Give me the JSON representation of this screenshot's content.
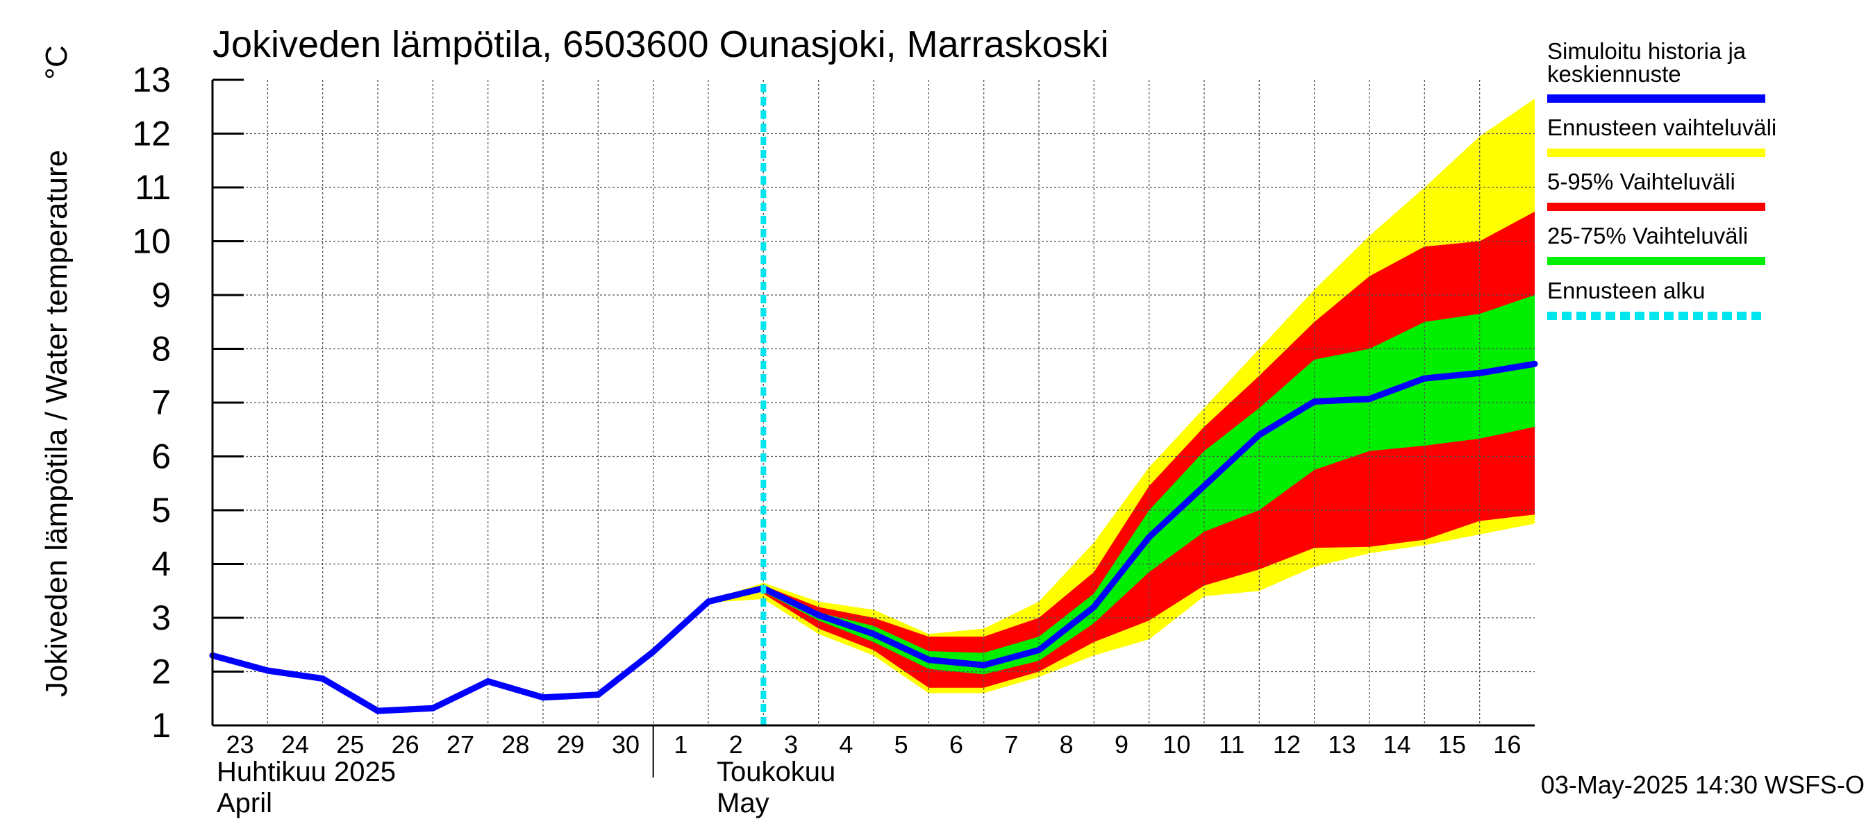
{
  "chart_data": {
    "type": "area",
    "title": "Jokiveden lämpötila, 6503600 Ounasjoki, Marraskoski",
    "ylabel": "Jokiveden lämpötila / Water temperature",
    "yunit": "°C",
    "ylim": [
      1,
      13
    ],
    "yticks": [
      1,
      2,
      3,
      4,
      5,
      6,
      7,
      8,
      9,
      10,
      11,
      12,
      13
    ],
    "xlim": [
      "2025-04-23",
      "2025-05-17"
    ],
    "x_tick_labels": [
      "23",
      "24",
      "25",
      "26",
      "27",
      "28",
      "29",
      "30",
      "1",
      "2",
      "3",
      "4",
      "5",
      "6",
      "7",
      "8",
      "9",
      "10",
      "11",
      "12",
      "13",
      "14",
      "15",
      "16"
    ],
    "month_labels": [
      {
        "fi": "Huhtikuu  2025",
        "en": "April"
      },
      {
        "fi": "Toukokuu",
        "en": "May"
      }
    ],
    "grid": true,
    "legend_placement": "right",
    "forecast_start": "2025-05-03",
    "footer": "03-May-2025 14:30 WSFS-O",
    "colors": {
      "history": "#0000ff",
      "full_range": "#ffff00",
      "p5_95": "#ff0000",
      "p25_75": "#00ee00",
      "forecast_start": "#00e5ee"
    },
    "series": [
      {
        "name": "Simuloitu historia ja keskiennuste",
        "x": [
          "2025-04-23",
          "2025-04-24",
          "2025-04-25",
          "2025-04-26",
          "2025-04-27",
          "2025-04-28",
          "2025-04-29",
          "2025-04-30",
          "2025-05-01",
          "2025-05-02",
          "2025-05-03",
          "2025-05-04",
          "2025-05-05",
          "2025-05-06",
          "2025-05-07",
          "2025-05-08",
          "2025-05-09",
          "2025-05-10",
          "2025-05-11",
          "2025-05-12",
          "2025-05-13",
          "2025-05-14",
          "2025-05-15",
          "2025-05-16",
          "2025-05-17"
        ],
        "y": [
          2.3,
          2.02,
          1.87,
          1.27,
          1.32,
          1.82,
          1.52,
          1.57,
          2.37,
          3.3,
          3.55,
          3.05,
          2.7,
          2.22,
          2.12,
          2.4,
          3.2,
          4.5,
          5.45,
          6.4,
          7.02,
          7.07,
          7.45,
          7.55,
          7.72
        ]
      }
    ],
    "bands": [
      {
        "name": "Ennusteen vaihteluväli",
        "x": [
          "2025-05-02",
          "2025-05-03",
          "2025-05-04",
          "2025-05-05",
          "2025-05-06",
          "2025-05-07",
          "2025-05-08",
          "2025-05-09",
          "2025-05-10",
          "2025-05-11",
          "2025-05-12",
          "2025-05-13",
          "2025-05-14",
          "2025-05-15",
          "2025-05-16",
          "2025-05-17"
        ],
        "lower": [
          3.28,
          3.35,
          2.7,
          2.3,
          1.6,
          1.6,
          1.9,
          2.3,
          2.6,
          3.4,
          3.5,
          3.95,
          4.2,
          4.35,
          4.55,
          4.75
        ],
        "upper": [
          3.32,
          3.65,
          3.3,
          3.15,
          2.7,
          2.8,
          3.3,
          4.4,
          5.8,
          6.9,
          8.0,
          9.1,
          10.1,
          11.0,
          11.95,
          12.65
        ]
      },
      {
        "name": "5-95% Vaihteluväli",
        "x": [
          "2025-05-03",
          "2025-05-04",
          "2025-05-05",
          "2025-05-06",
          "2025-05-07",
          "2025-05-08",
          "2025-05-09",
          "2025-05-10",
          "2025-05-11",
          "2025-05-12",
          "2025-05-13",
          "2025-05-14",
          "2025-05-15",
          "2025-05-16",
          "2025-05-17"
        ],
        "lower": [
          3.45,
          2.8,
          2.4,
          1.7,
          1.7,
          2.0,
          2.55,
          2.95,
          3.6,
          3.9,
          4.3,
          4.32,
          4.45,
          4.8,
          4.92
        ],
        "upper": [
          3.6,
          3.2,
          3.0,
          2.65,
          2.65,
          3.0,
          3.85,
          5.45,
          6.55,
          7.5,
          8.5,
          9.35,
          9.9,
          10.0,
          10.55
        ]
      },
      {
        "name": "25-75% Vaihteluväli",
        "x": [
          "2025-05-03",
          "2025-05-04",
          "2025-05-05",
          "2025-05-06",
          "2025-05-07",
          "2025-05-08",
          "2025-05-09",
          "2025-05-10",
          "2025-05-11",
          "2025-05-12",
          "2025-05-13",
          "2025-05-14",
          "2025-05-15",
          "2025-05-16",
          "2025-05-17"
        ],
        "lower": [
          3.48,
          2.95,
          2.55,
          2.05,
          1.95,
          2.2,
          2.9,
          3.85,
          4.6,
          5.0,
          5.75,
          6.1,
          6.2,
          6.33,
          6.55
        ],
        "upper": [
          3.58,
          3.1,
          2.85,
          2.38,
          2.35,
          2.65,
          3.45,
          5.0,
          6.1,
          6.9,
          7.8,
          8.0,
          8.5,
          8.65,
          9.0
        ]
      }
    ],
    "legend": [
      {
        "label": "Simuloitu historia ja keskiennuste",
        "lines": [
          "Simuloitu historia ja",
          "keskiennuste"
        ],
        "color": "#0000ff",
        "style": "line"
      },
      {
        "label": "Ennusteen vaihteluväli",
        "lines": [
          "Ennusteen vaihteluväli"
        ],
        "color": "#ffff00",
        "style": "line"
      },
      {
        "label": "5-95% Vaihteluväli",
        "lines": [
          "5-95% Vaihteluväli"
        ],
        "color": "#ff0000",
        "style": "line"
      },
      {
        "label": "25-75% Vaihteluväli",
        "lines": [
          "25-75% Vaihteluväli"
        ],
        "color": "#00ee00",
        "style": "line"
      },
      {
        "label": "Ennusteen alku",
        "lines": [
          "Ennusteen alku"
        ],
        "color": "#00e5ee",
        "style": "dashed"
      }
    ]
  }
}
